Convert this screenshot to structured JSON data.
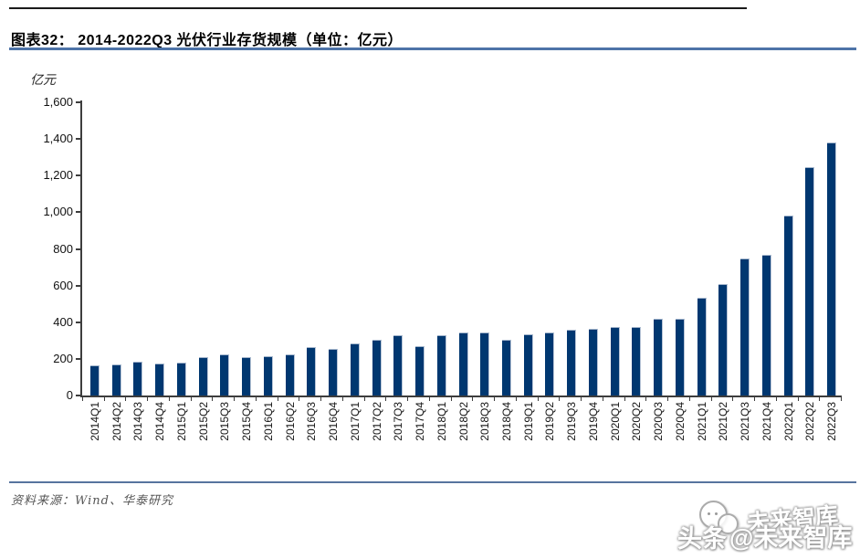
{
  "header": {
    "caption": "图表32：  2014-2022Q3 光伏行业存货规模（单位：亿元）"
  },
  "chart_data": {
    "type": "bar",
    "title": "2014-2022Q3 光伏行业存货规模",
    "unit_label": "亿元",
    "categories": [
      "2014Q1",
      "2014Q2",
      "2014Q3",
      "2014Q4",
      "2015Q1",
      "2015Q2",
      "2015Q3",
      "2015Q4",
      "2016Q1",
      "2016Q2",
      "2016Q3",
      "2016Q4",
      "2017Q1",
      "2017Q2",
      "2017Q3",
      "2017Q4",
      "2018Q1",
      "2018Q2",
      "2018Q3",
      "2018Q4",
      "2019Q1",
      "2019Q2",
      "2019Q3",
      "2019Q4",
      "2020Q1",
      "2020Q2",
      "2020Q3",
      "2020Q4",
      "2021Q1",
      "2021Q2",
      "2021Q3",
      "2021Q4",
      "2022Q1",
      "2022Q2",
      "2022Q3"
    ],
    "values": [
      165,
      170,
      183,
      172,
      181,
      207,
      224,
      210,
      214,
      224,
      262,
      252,
      282,
      306,
      328,
      268,
      331,
      343,
      346,
      306,
      335,
      345,
      361,
      366,
      372,
      375,
      419,
      417,
      534,
      608,
      749,
      770,
      980,
      1245,
      1380
    ],
    "ylim": [
      0,
      1600
    ],
    "y_tick_step": 200,
    "y_tick_labels": [
      "0",
      "200",
      "400",
      "600",
      "800",
      "1,000",
      "1,200",
      "1,400",
      "1,600"
    ],
    "xlabel": "",
    "ylabel": "亿元",
    "grid": false,
    "legend_position": "none",
    "bar_color": "#003770"
  },
  "footer": {
    "source": "资料来源：Wind、华泰研究"
  },
  "watermark": {
    "upper_text": "未来智库",
    "main_left": "头条",
    "main_right": "@未来智库"
  },
  "colors": {
    "bar": "#003770",
    "bar_edge_highlight": "#a3b4cb",
    "caption_rule": "#4e74a8",
    "footer_rule": "#57749e",
    "top_rule": "#1a1a1a",
    "axis": "#3d3d3d",
    "source_text": "#565656"
  }
}
